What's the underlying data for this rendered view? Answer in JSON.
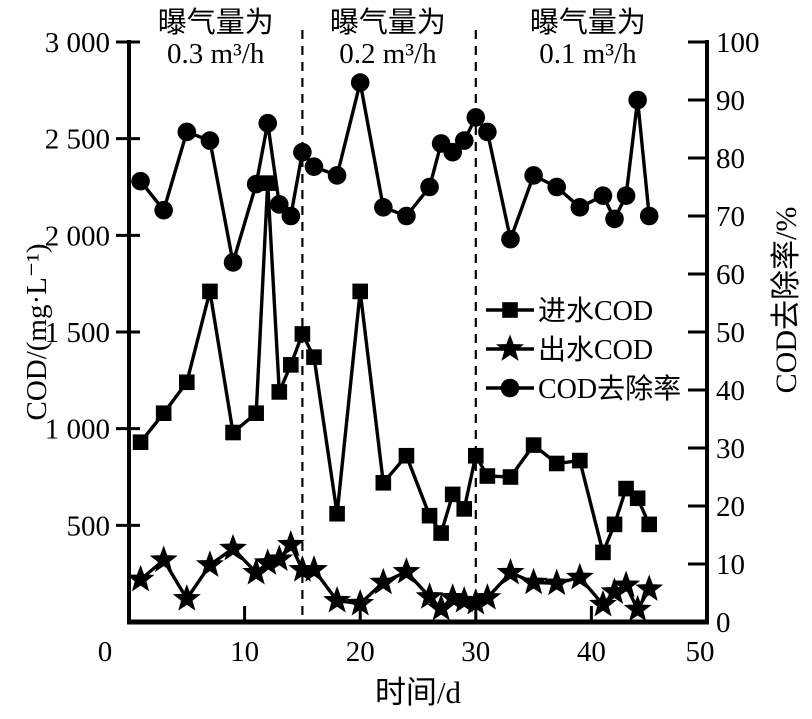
{
  "chart_data": {
    "type": "line",
    "title": "",
    "xlabel": "时间/d",
    "ylabel_left": "COD/(mg·L⁻¹)",
    "ylabel_right": "COD去除率/%",
    "xlim": [
      0,
      50
    ],
    "ylim_left": [
      0,
      3000
    ],
    "ylim_right": [
      0,
      100
    ],
    "grid": false,
    "legend_position": "inside-middle-right",
    "colors": {
      "foreground": "#000000",
      "background": "#ffffff"
    },
    "x_ticks": {
      "values": [
        0,
        10,
        20,
        30,
        40,
        50
      ],
      "labels": [
        "0",
        "10",
        "20",
        "30",
        "40",
        "50"
      ]
    },
    "y_ticks_left": {
      "values": [
        500,
        1000,
        1500,
        2000,
        2500,
        3000
      ],
      "labels": [
        "500",
        "1 000",
        "1 500",
        "2 000",
        "2 500",
        "3 000"
      ]
    },
    "y_ticks_right": {
      "values": [
        0,
        10,
        20,
        30,
        40,
        50,
        60,
        70,
        80,
        90,
        100
      ],
      "labels": [
        "0",
        "10",
        "20",
        "30",
        "40",
        "50",
        "60",
        "70",
        "80",
        "90",
        "100"
      ]
    },
    "x": [
      1,
      3,
      5,
      7,
      9,
      11,
      12,
      13,
      14,
      15,
      16,
      18,
      20,
      22,
      24,
      26,
      27,
      28,
      29,
      30,
      31,
      33,
      35,
      37,
      39,
      41,
      42,
      43,
      44,
      45
    ],
    "series": [
      {
        "name": "进水COD",
        "marker": "square",
        "axis": "left",
        "values": [
          930,
          1080,
          1240,
          1710,
          980,
          1080,
          2270,
          1190,
          1330,
          1490,
          1370,
          560,
          1710,
          720,
          860,
          550,
          460,
          660,
          585,
          860,
          755,
          750,
          915,
          820,
          835,
          360,
          505,
          690,
          640,
          505
        ]
      },
      {
        "name": "出水COD",
        "marker": "star",
        "axis": "left",
        "values": [
          220,
          320,
          120,
          295,
          380,
          255,
          305,
          325,
          400,
          270,
          270,
          110,
          95,
          205,
          260,
          130,
          70,
          125,
          110,
          100,
          125,
          255,
          205,
          200,
          230,
          90,
          155,
          190,
          65,
          170
        ]
      },
      {
        "name": "COD去除率",
        "marker": "circle",
        "axis": "right",
        "values": [
          76,
          71,
          84.5,
          83,
          62,
          75.5,
          86,
          72,
          70,
          81,
          78.5,
          77,
          93,
          71.5,
          70,
          75,
          82.5,
          81,
          83,
          87,
          84.5,
          66,
          77,
          75,
          71.5,
          73.5,
          69.5,
          73.5,
          90,
          70
        ]
      }
    ],
    "phase_dividers_day": [
      15,
      30
    ],
    "annotations": [
      {
        "line1": "曝气量为",
        "line2": "0.3 m³/h",
        "center_day": 7.5
      },
      {
        "line1": "曝气量为",
        "line2": "0.2 m³/h",
        "center_day": 22.4
      },
      {
        "line1": "曝气量为",
        "line2": "0.1 m³/h",
        "center_day": 39.7
      }
    ]
  }
}
